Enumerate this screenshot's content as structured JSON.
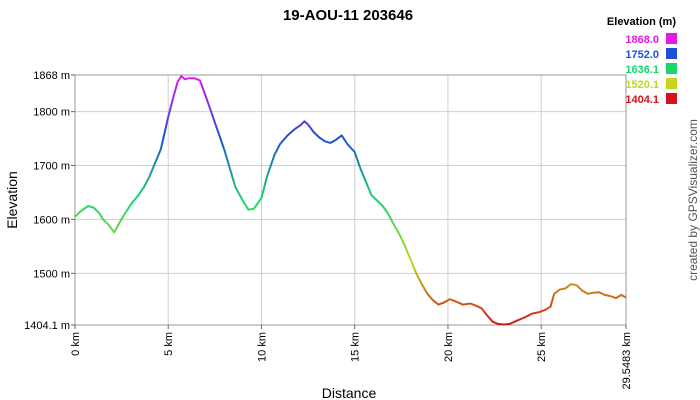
{
  "chart_data": {
    "type": "line",
    "title": "19-AOU-11 203646",
    "xlabel": "Distance",
    "ylabel": "Elevation",
    "xlim": [
      0,
      29.5483
    ],
    "ylim": [
      1404.1,
      1868.0
    ],
    "x_ticks": [
      {
        "value": 0,
        "label": "0 km"
      },
      {
        "value": 5,
        "label": "5 km"
      },
      {
        "value": 10,
        "label": "10 km"
      },
      {
        "value": 15,
        "label": "15 km"
      },
      {
        "value": 20,
        "label": "20 km"
      },
      {
        "value": 25,
        "label": "25 km"
      },
      {
        "value": 29.5483,
        "label": "29.5483 km"
      }
    ],
    "y_ticks": [
      {
        "value": 1404.1,
        "label": "1404.1 m"
      },
      {
        "value": 1500,
        "label": "1500 m"
      },
      {
        "value": 1600,
        "label": "1600 m"
      },
      {
        "value": 1700,
        "label": "1700 m"
      },
      {
        "value": 1800,
        "label": "1800 m"
      },
      {
        "value": 1868,
        "label": "1868 m"
      }
    ],
    "grid": true,
    "legend": {
      "title": "Elevation (m)",
      "position": "top-right",
      "entries": [
        {
          "label": "1868.0",
          "color": "#e619e6"
        },
        {
          "label": "1752.0",
          "color": "#1f4fd6"
        },
        {
          "label": "1636.1",
          "color": "#1bd66e"
        },
        {
          "label": "1520.1",
          "color": "#c2d61a"
        },
        {
          "label": "1404.1",
          "color": "#d6121b"
        }
      ]
    },
    "x": [
      0,
      0.3,
      0.7,
      1.0,
      1.3,
      1.5,
      1.8,
      2.1,
      2.4,
      2.7,
      3.0,
      3.4,
      3.7,
      4.0,
      4.3,
      4.6,
      5.0,
      5.3,
      5.5,
      5.7,
      5.9,
      6.1,
      6.4,
      6.7,
      7.0,
      7.3,
      7.6,
      8.0,
      8.3,
      8.6,
      9.0,
      9.3,
      9.6,
      10.0,
      10.3,
      10.7,
      11.0,
      11.4,
      11.8,
      12.1,
      12.3,
      12.5,
      12.8,
      13.1,
      13.4,
      13.7,
      14.0,
      14.3,
      14.6,
      15.0,
      15.3,
      15.6,
      15.9,
      16.2,
      16.5,
      16.8,
      17.1,
      17.4,
      17.7,
      18.0,
      18.3,
      18.6,
      18.9,
      19.2,
      19.5,
      19.8,
      20.1,
      20.4,
      20.8,
      21.2,
      21.5,
      21.8,
      22.1,
      22.4,
      22.7,
      23.0,
      23.3,
      23.7,
      24.1,
      24.5,
      24.9,
      25.2,
      25.5,
      25.7,
      26.0,
      26.3,
      26.6,
      26.9,
      27.2,
      27.5,
      27.8,
      28.1,
      28.4,
      28.7,
      29.0,
      29.3,
      29.5483
    ],
    "y": [
      1605,
      1615,
      1625,
      1622,
      1612,
      1600,
      1590,
      1576,
      1595,
      1612,
      1628,
      1645,
      1660,
      1680,
      1705,
      1730,
      1790,
      1830,
      1855,
      1866,
      1860,
      1862,
      1862,
      1858,
      1830,
      1800,
      1770,
      1730,
      1695,
      1660,
      1635,
      1618,
      1620,
      1640,
      1680,
      1720,
      1740,
      1756,
      1768,
      1775,
      1782,
      1776,
      1762,
      1752,
      1745,
      1742,
      1748,
      1756,
      1740,
      1725,
      1695,
      1670,
      1645,
      1635,
      1625,
      1610,
      1590,
      1572,
      1550,
      1525,
      1500,
      1480,
      1462,
      1450,
      1442,
      1446,
      1452,
      1448,
      1442,
      1444,
      1440,
      1435,
      1422,
      1410,
      1406,
      1405,
      1406,
      1412,
      1418,
      1425,
      1428,
      1432,
      1438,
      1462,
      1470,
      1472,
      1480,
      1478,
      1468,
      1462,
      1464,
      1465,
      1460,
      1458,
      1454,
      1460,
      1455
    ]
  },
  "credit": "created by GPSVisualizer.com"
}
